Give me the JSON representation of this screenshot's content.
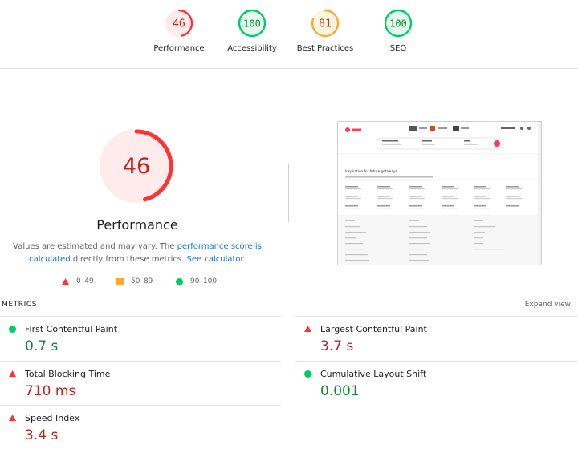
{
  "categories": [
    {
      "id": "performance",
      "label": "Performance",
      "score": "46",
      "status": "fail"
    },
    {
      "id": "accessibility",
      "label": "Accessibility",
      "score": "100",
      "status": "pass"
    },
    {
      "id": "best_practices",
      "label": "Best Practices",
      "score": "81",
      "status": "average"
    },
    {
      "id": "seo",
      "label": "SEO",
      "score": "100",
      "status": "pass"
    }
  ],
  "colors": {
    "fail": "#ff3333",
    "fail_bg": "#fdeceb",
    "fail_text": "#c5221f",
    "average": "#ffaa33",
    "average_bg": "#fef5e7",
    "average_text": "#c33300",
    "pass": "#00cc66",
    "pass_bg": "#e6f9ef",
    "pass_text": "#0c8a2e",
    "link": "#1a73e8"
  },
  "performance": {
    "score": "46",
    "score_fraction": 0.46,
    "title": "Performance",
    "note_prefix": "Values are estimated and may vary. The ",
    "note_link1": "performance score is calculated",
    "note_middle": " directly from these metrics. ",
    "note_link2": "See calculator",
    "note_suffix": "."
  },
  "legend": [
    {
      "shape": "triangle",
      "range": "0–49"
    },
    {
      "shape": "square",
      "range": "50–89"
    },
    {
      "shape": "circle",
      "range": "90–100"
    }
  ],
  "metrics": {
    "title": "METRICS",
    "expand_label": "Expand view",
    "items": [
      {
        "name": "First Contentful Paint",
        "value": "0.7 s",
        "status": "pass"
      },
      {
        "name": "Largest Contentful Paint",
        "value": "3.7 s",
        "status": "fail"
      },
      {
        "name": "Total Blocking Time",
        "value": "710 ms",
        "status": "fail"
      },
      {
        "name": "Cumulative Layout Shift",
        "value": "0.001",
        "status": "pass"
      },
      {
        "name": "Speed Index",
        "value": "3.4 s",
        "status": "fail"
      }
    ]
  },
  "thumbnail": {
    "heading": "Inspiration for future getaways",
    "brand_color": "#ff385c"
  }
}
